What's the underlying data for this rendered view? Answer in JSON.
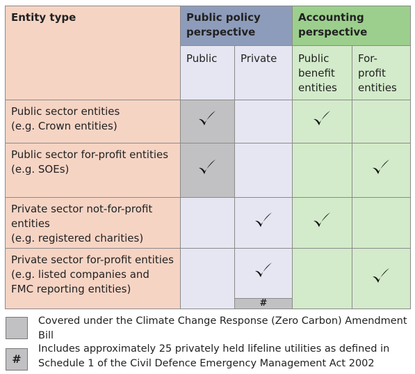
{
  "table": {
    "corner": "Entity type",
    "groups": [
      "Public policy perspective",
      "Accounting perspective"
    ],
    "columns": [
      "Public",
      "Private",
      "Public benefit entities",
      "For-profit entities"
    ],
    "rows": [
      {
        "name": "Public sector entities",
        "example": "(e.g. Crown entities)",
        "checks": [
          true,
          false,
          true,
          false
        ],
        "covered": [
          true,
          false,
          false,
          false
        ]
      },
      {
        "name": "Public sector for-profit entities",
        "example": "(e.g. SOEs)",
        "checks": [
          true,
          false,
          false,
          true
        ],
        "covered": [
          true,
          false,
          false,
          false
        ]
      },
      {
        "name": "Private sector not-for-profit entities",
        "example": "(e.g. registered charities)",
        "checks": [
          false,
          true,
          true,
          false
        ],
        "covered": [
          false,
          false,
          false,
          false
        ]
      },
      {
        "name": "Private sector for-profit entities",
        "example": "(e.g. listed companies and FMC reporting entities)",
        "checks": [
          false,
          true,
          false,
          true
        ],
        "covered": [
          false,
          false,
          false,
          false
        ],
        "note": "#"
      }
    ]
  },
  "legend": [
    {
      "text": "Covered under the Climate Change Response (Zero Carbon) Amendment Bill"
    },
    {
      "marker": "#",
      "text": "Includes approximately 25 privately held lifeline utilities as defined in Schedule 1 of the Civil Defence Emergency Management Act 2002"
    }
  ]
}
